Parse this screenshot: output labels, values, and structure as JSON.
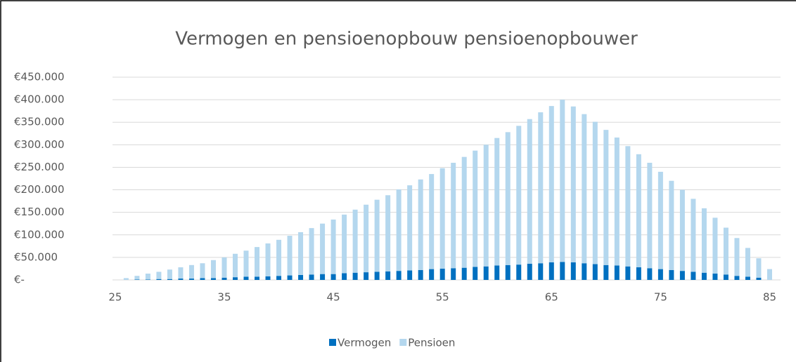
{
  "chart_data": {
    "type": "stacked_bar",
    "title": "Vermogen en pensioenopbouw pensioenopbouwer",
    "x": [
      25,
      26,
      27,
      28,
      29,
      30,
      31,
      32,
      33,
      34,
      35,
      36,
      37,
      38,
      39,
      40,
      41,
      42,
      43,
      44,
      45,
      46,
      47,
      48,
      49,
      50,
      51,
      52,
      53,
      54,
      55,
      56,
      57,
      58,
      59,
      60,
      61,
      62,
      63,
      64,
      65,
      66,
      67,
      68,
      69,
      70,
      71,
      72,
      73,
      74,
      75,
      76,
      77,
      78,
      79,
      80,
      81,
      82,
      83,
      84,
      85
    ],
    "series": [
      {
        "name": "Vermogen",
        "color": "#0070c0",
        "values": [
          0,
          0,
          1000,
          1000,
          2000,
          2000,
          3000,
          3000,
          4000,
          4000,
          5000,
          6000,
          7000,
          7000,
          8000,
          9000,
          10000,
          11000,
          12000,
          13000,
          13000,
          15000,
          16000,
          17000,
          18000,
          19000,
          20000,
          21000,
          22000,
          24000,
          25000,
          26000,
          27000,
          29000,
          30000,
          32000,
          33000,
          34000,
          36000,
          37000,
          39000,
          40000,
          39000,
          37000,
          35000,
          33000,
          32000,
          30000,
          28000,
          26000,
          24000,
          22000,
          20000,
          18000,
          16000,
          14000,
          12000,
          9000,
          7000,
          5000,
          0
        ]
      },
      {
        "name": "Pensioen",
        "color": "#b4d7ee",
        "values": [
          0,
          4000,
          8000,
          13000,
          16000,
          21000,
          25000,
          30000,
          33000,
          40000,
          45000,
          52000,
          58000,
          66000,
          73000,
          80000,
          88000,
          95000,
          103000,
          112000,
          121000,
          130000,
          140000,
          150000,
          160000,
          169000,
          181000,
          189000,
          201000,
          211000,
          223000,
          234000,
          246000,
          258000,
          270000,
          283000,
          295000,
          308000,
          321000,
          335000,
          347000,
          360000,
          346000,
          331000,
          316000,
          300000,
          284000,
          267000,
          251000,
          234000,
          216000,
          198000,
          180000,
          162000,
          143000,
          124000,
          104000,
          84000,
          64000,
          43000,
          24000
        ]
      }
    ],
    "xlim": [
      24.75,
      86
    ],
    "xticks": [
      25,
      35,
      45,
      55,
      65,
      75,
      85
    ],
    "ylim": [
      0,
      450000
    ],
    "yticks": [
      {
        "value": 0,
        "label": "€-"
      },
      {
        "value": 50000,
        "label": "€50.000"
      },
      {
        "value": 100000,
        "label": "€100.000"
      },
      {
        "value": 150000,
        "label": "€150.000"
      },
      {
        "value": 200000,
        "label": "€200.000"
      },
      {
        "value": 250000,
        "label": "€250.000"
      },
      {
        "value": 300000,
        "label": "€300.000"
      },
      {
        "value": 350000,
        "label": "€350.000"
      },
      {
        "value": 400000,
        "label": "€400.000"
      },
      {
        "value": 450000,
        "label": "€450.000"
      }
    ],
    "grid": true,
    "legend": "bottom"
  }
}
